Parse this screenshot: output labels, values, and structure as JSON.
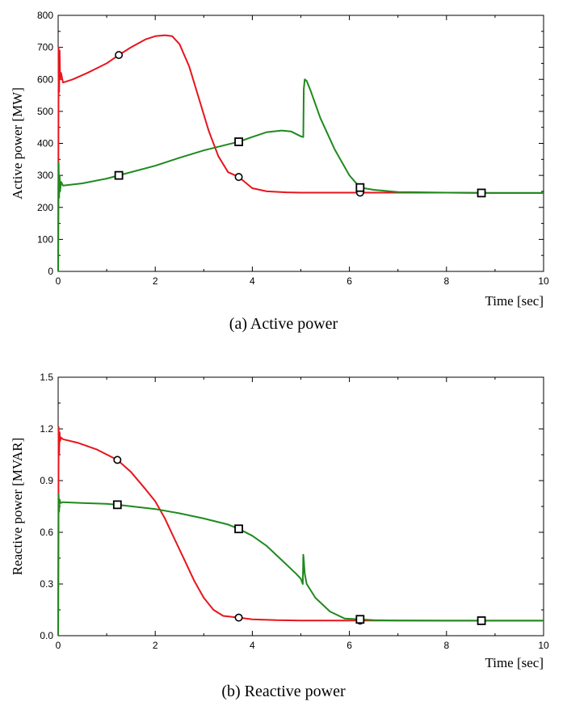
{
  "chart_data": [
    {
      "type": "line",
      "caption": "(a)  Active  power",
      "xlabel": "Time [sec]",
      "ylabel": "Active power [MW]",
      "xlim": [
        0,
        10
      ],
      "ylim": [
        0,
        800
      ],
      "xticks": [
        0,
        2,
        4,
        6,
        8,
        10
      ],
      "yticks": [
        0,
        100,
        200,
        300,
        400,
        500,
        600,
        700,
        800
      ],
      "ytick_labels": [
        "0",
        "100",
        "200",
        "300",
        "400",
        "500",
        "600",
        "700",
        "800"
      ],
      "grid": false,
      "series": [
        {
          "color": "#e8141c",
          "marker": "circle",
          "markers_x": [
            1.25,
            3.72,
            6.22
          ],
          "x": [
            0,
            0.01,
            0.02,
            0.03,
            0.04,
            0.06,
            0.1,
            0.3,
            0.6,
            1.0,
            1.25,
            1.5,
            1.8,
            2.0,
            2.2,
            2.35,
            2.5,
            2.7,
            2.9,
            3.1,
            3.3,
            3.5,
            3.72,
            4.0,
            4.3,
            4.7,
            5.0,
            6.0,
            6.22,
            7.0,
            8.0,
            9.0,
            10.0
          ],
          "y": [
            0,
            700,
            560,
            690,
            600,
            620,
            590,
            600,
            620,
            650,
            676,
            700,
            725,
            735,
            738,
            735,
            710,
            640,
            540,
            440,
            360,
            310,
            295,
            260,
            250,
            247,
            246,
            246,
            246,
            246,
            246,
            245,
            245
          ]
        },
        {
          "color": "#1e8a1e",
          "marker": "square",
          "markers_x": [
            1.25,
            3.72,
            6.22,
            8.72
          ],
          "x": [
            0,
            0.01,
            0.02,
            0.03,
            0.04,
            0.06,
            0.1,
            0.5,
            1.0,
            1.25,
            2.0,
            2.5,
            3.0,
            3.5,
            3.72,
            4.0,
            4.3,
            4.6,
            4.8,
            5.0,
            5.05,
            5.06,
            5.08,
            5.12,
            5.2,
            5.4,
            5.7,
            6.0,
            6.22,
            6.5,
            7.0,
            8.0,
            8.72,
            9.0,
            10.0
          ],
          "y": [
            0,
            340,
            230,
            300,
            250,
            280,
            268,
            275,
            290,
            300,
            330,
            355,
            378,
            397,
            405,
            420,
            435,
            440,
            437,
            422,
            420,
            570,
            600,
            595,
            565,
            480,
            380,
            300,
            262,
            255,
            248,
            246,
            245,
            245,
            245
          ]
        }
      ]
    },
    {
      "type": "line",
      "caption": "(b)  Reactive  power",
      "xlabel": "Time [sec]",
      "ylabel": "Reactive power [MVAR]",
      "xlim": [
        0,
        10
      ],
      "ylim": [
        0,
        1.5
      ],
      "xticks": [
        0,
        2,
        4,
        6,
        8,
        10
      ],
      "yticks": [
        0,
        0.3,
        0.6,
        0.9,
        1.2,
        1.5
      ],
      "ytick_labels": [
        "0.0",
        "0.3",
        "0.6",
        "0.9",
        "1.2",
        "1.5"
      ],
      "grid": false,
      "series": [
        {
          "color": "#e8141c",
          "marker": "circle",
          "markers_x": [
            1.22,
            3.72,
            6.22
          ],
          "x": [
            0,
            0.01,
            0.02,
            0.03,
            0.04,
            0.06,
            0.1,
            0.4,
            0.8,
            1.22,
            1.5,
            1.8,
            2.0,
            2.2,
            2.4,
            2.6,
            2.8,
            3.0,
            3.2,
            3.4,
            3.72,
            4.0,
            4.5,
            5.0,
            6.0,
            6.22,
            7.0,
            8.0,
            9.0,
            10.0
          ],
          "y": [
            0,
            1.21,
            1.05,
            1.18,
            1.13,
            1.15,
            1.14,
            1.12,
            1.08,
            1.02,
            0.95,
            0.85,
            0.78,
            0.68,
            0.56,
            0.44,
            0.32,
            0.22,
            0.15,
            0.115,
            0.105,
            0.095,
            0.09,
            0.088,
            0.088,
            0.088,
            0.088,
            0.087,
            0.087,
            0.087
          ]
        },
        {
          "color": "#1e8a1e",
          "marker": "square",
          "markers_x": [
            1.22,
            3.72,
            6.22,
            8.72
          ],
          "x": [
            0,
            0.01,
            0.02,
            0.03,
            0.05,
            0.1,
            0.5,
            1.0,
            1.22,
            2.0,
            2.5,
            3.0,
            3.5,
            3.72,
            4.0,
            4.3,
            4.6,
            4.9,
            5.0,
            5.04,
            5.05,
            5.06,
            5.08,
            5.12,
            5.3,
            5.6,
            5.9,
            6.22,
            6.5,
            7.0,
            8.0,
            8.72,
            9.0,
            10.0
          ],
          "y": [
            0,
            0.82,
            0.72,
            0.79,
            0.77,
            0.775,
            0.77,
            0.765,
            0.76,
            0.735,
            0.71,
            0.68,
            0.645,
            0.62,
            0.58,
            0.52,
            0.44,
            0.36,
            0.33,
            0.3,
            0.47,
            0.44,
            0.36,
            0.3,
            0.22,
            0.14,
            0.1,
            0.095,
            0.09,
            0.088,
            0.087,
            0.087,
            0.087,
            0.087
          ]
        }
      ]
    }
  ]
}
